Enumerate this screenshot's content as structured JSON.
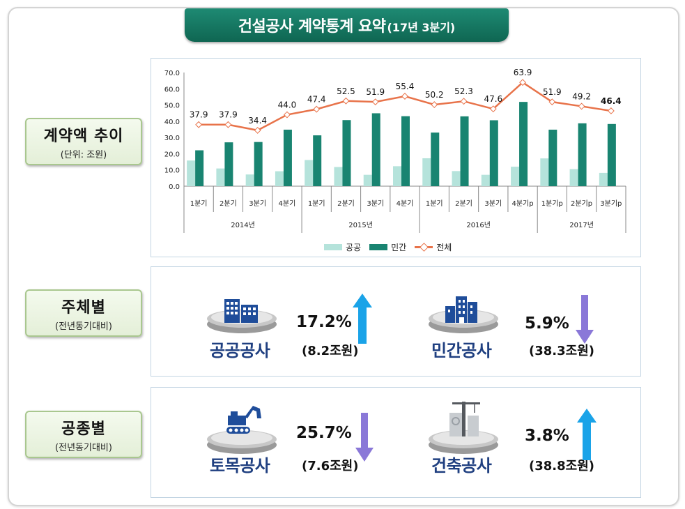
{
  "title": {
    "main": "건설공사 계약통계 요약",
    "sub": "(17년 3분기)"
  },
  "sections": {
    "trend": {
      "label": "계약액 추이",
      "sublabel": "(단위: 조원)"
    },
    "by_client": {
      "label": "주체별",
      "sublabel": "(전년동기대비)"
    },
    "by_type": {
      "label": "공종별",
      "sublabel": "(전년동기대비)"
    }
  },
  "client_items": [
    {
      "name": "공공공사",
      "pct": "17.2%",
      "amount": "(8.2조원)",
      "direction": "up",
      "icon": "office-buildings-icon"
    },
    {
      "name": "민간공사",
      "pct": "5.9%",
      "amount": "(38.3조원)",
      "direction": "down",
      "icon": "city-buildings-icon"
    }
  ],
  "type_items": [
    {
      "name": "토목공사",
      "pct": "25.7%",
      "amount": "(7.6조원)",
      "direction": "down",
      "icon": "excavator-icon"
    },
    {
      "name": "건축공사",
      "pct": "3.8%",
      "amount": "(38.8조원)",
      "direction": "up",
      "icon": "construction-crane-icon"
    }
  ],
  "colors": {
    "public": "#b5e3db",
    "private": "#198471",
    "total": "#e8734a",
    "up_arrow": "#1aa3e8",
    "down_arrow": "#8a78d8",
    "banner": "#137a63",
    "item_text": "#1f3f80"
  },
  "chart_data": {
    "type": "bar",
    "title": "",
    "ylabel": "",
    "ylim": [
      0,
      70
    ],
    "yticks": [
      "70.0",
      "60.0",
      "50.0",
      "40.0",
      "30.0",
      "20.0",
      "10.0",
      "0.0"
    ],
    "categories": [
      "1분기",
      "2분기",
      "3분기",
      "4분기",
      "1분기",
      "2분기",
      "3분기",
      "4분기",
      "1분기",
      "2분기",
      "3분기",
      "4분기p",
      "1분기p",
      "2분기p",
      "3분기p"
    ],
    "years": [
      {
        "label": "2014년",
        "count": 4
      },
      {
        "label": "2015년",
        "count": 4
      },
      {
        "label": "2016년",
        "count": 4
      },
      {
        "label": "2017년",
        "count": 3
      }
    ],
    "series": [
      {
        "name": "공공",
        "type": "bar",
        "values": [
          15.8,
          10.9,
          7.2,
          9.2,
          16.1,
          11.8,
          7.0,
          12.3,
          17.2,
          9.3,
          7.0,
          12.0,
          17.1,
          10.5,
          8.2
        ]
      },
      {
        "name": "민간",
        "type": "bar",
        "values": [
          22.1,
          27.0,
          27.2,
          34.8,
          31.3,
          40.7,
          44.9,
          43.1,
          33.0,
          43.0,
          40.6,
          51.9,
          34.8,
          38.7,
          38.3
        ]
      },
      {
        "name": "전체",
        "type": "line",
        "values": [
          37.9,
          37.9,
          34.4,
          44.0,
          47.4,
          52.5,
          51.9,
          55.4,
          50.2,
          52.3,
          47.6,
          63.9,
          51.9,
          49.2,
          46.4
        ]
      }
    ],
    "data_labels": [
      "37.9",
      "37.9",
      "34.4",
      "44.0",
      "47.4",
      "52.5",
      "51.9",
      "55.4",
      "50.2",
      "52.3",
      "47.6",
      "63.9",
      "51.9",
      "49.2",
      "46.4"
    ],
    "legend_position": "bottom",
    "grid": false
  }
}
